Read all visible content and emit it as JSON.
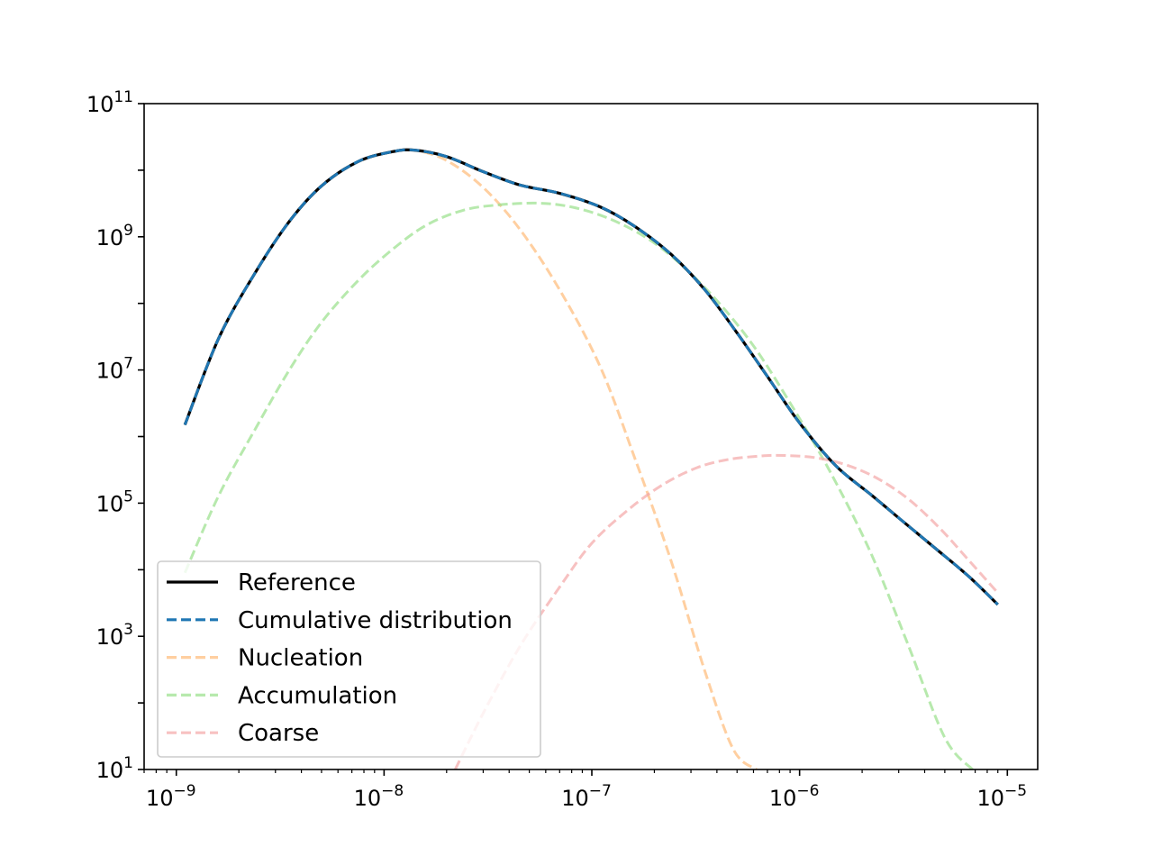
{
  "chart_data": {
    "type": "line",
    "title": "",
    "xlabel": "",
    "ylabel": "",
    "x_scale": "log",
    "y_scale": "log",
    "xlim": [
      7e-10,
      1.4e-05
    ],
    "ylim": [
      10,
      100000000000.0
    ],
    "x_ticks": [
      {
        "base": "10",
        "exp": "−9",
        "value": 1e-09
      },
      {
        "base": "10",
        "exp": "−8",
        "value": 1e-08
      },
      {
        "base": "10",
        "exp": "−7",
        "value": 1e-07
      },
      {
        "base": "10",
        "exp": "−6",
        "value": 1e-06
      },
      {
        "base": "10",
        "exp": "−5",
        "value": 1e-05
      }
    ],
    "y_ticks": [
      {
        "base": "10",
        "exp": "1",
        "value": 10.0
      },
      {
        "base": "10",
        "exp": "3",
        "value": 1000.0
      },
      {
        "base": "10",
        "exp": "5",
        "value": 100000.0
      },
      {
        "base": "10",
        "exp": "7",
        "value": 10000000.0
      },
      {
        "base": "10",
        "exp": "9",
        "value": 1000000000.0
      },
      {
        "base": "10",
        "exp": "11",
        "value": 100000000000.0
      }
    ],
    "grid": false,
    "legend_position": "lower-left",
    "x": [
      1.1e-09,
      1.6e-09,
      2.4e-09,
      3.5e-09,
      5e-09,
      7.5e-09,
      1.1e-08,
      1.4e-08,
      2e-08,
      3e-08,
      4.5e-08,
      7e-08,
      1.1e-07,
      1.6e-07,
      2.4e-07,
      3.5e-07,
      5e-07,
      7e-07,
      1e-06,
      1.5e-06,
      2.2e-06,
      3e-06,
      4.5e-06,
      6.5e-06,
      9e-06
    ],
    "series": [
      {
        "name": "Reference",
        "color": "#000000",
        "dash": "solid",
        "opacity": 1.0,
        "values": [
          1500000.0,
          30000000.0,
          290000000.0,
          1700000000.0,
          5800000000.0,
          13500000000.0,
          19000000000.0,
          20000000000.0,
          16000000000.0,
          9500000000.0,
          6000000000.0,
          4500000000.0,
          2800000000.0,
          1450000000.0,
          550000000.0,
          160000000.0,
          36000000.0,
          8000000.0,
          1600000.0,
          360000.0,
          135000.0,
          60000.0,
          21000.0,
          8000.0,
          3000.0
        ]
      },
      {
        "name": "Cumulative distribution",
        "color": "#1f77b4",
        "dash": "dashed",
        "opacity": 1.0,
        "values": [
          1500000.0,
          30000000.0,
          290000000.0,
          1700000000.0,
          5800000000.0,
          13500000000.0,
          19000000000.0,
          20000000000.0,
          16000000000.0,
          9500000000.0,
          6000000000.0,
          4500000000.0,
          2800000000.0,
          1450000000.0,
          550000000.0,
          160000000.0,
          36000000.0,
          8000000.0,
          1600000.0,
          360000.0,
          135000.0,
          60000.0,
          21000.0,
          8000.0,
          3000.0
        ]
      },
      {
        "name": "Nucleation",
        "color": "#ffbb78",
        "dash": "dashed",
        "opacity": 0.7,
        "x": [
          1.1e-09,
          1.6e-09,
          2.4e-09,
          3.5e-09,
          5e-09,
          7.5e-09,
          1.1e-08,
          1.4e-08,
          2e-08,
          3e-08,
          4.5e-08,
          7e-08,
          1.1e-07,
          1.6e-07,
          2.4e-07,
          3.5e-07,
          4.8e-07,
          6.2e-07
        ],
        "values": [
          1500000.0,
          30000000.0,
          290000000.0,
          1700000000.0,
          5800000000.0,
          13500000000.0,
          19000000000.0,
          20000000000.0,
          14000000000.0,
          5500000000.0,
          1300000000.0,
          160000000.0,
          11000000.0,
          500000.0,
          14000.0,
          300.0,
          20.0,
          10.0
        ]
      },
      {
        "name": "Accumulation",
        "color": "#98df8a",
        "dash": "dashed",
        "opacity": 0.7,
        "x": [
          1.1e-09,
          1.6e-09,
          2.4e-09,
          3.5e-09,
          5e-09,
          7.5e-09,
          1.1e-08,
          1.6e-08,
          2.4e-08,
          3.5e-08,
          5.5e-08,
          8e-08,
          1.2e-07,
          1.8e-07,
          2.6e-07,
          4e-07,
          6e-07,
          9e-07,
          1.4e-06,
          2.2e-06,
          3.3e-06,
          5e-06,
          6.8e-06
        ],
        "values": [
          9000.0,
          130000.0,
          1300000.0,
          10000000.0,
          52000000.0,
          220000000.0,
          650000000.0,
          1500000000.0,
          2500000000.0,
          3000000000.0,
          3200000000.0,
          2800000000.0,
          1900000000.0,
          1000000000.0,
          420000000.0,
          110000000.0,
          23000000.0,
          3200000.0,
          300000.0,
          18000.0,
          800.0,
          30.0,
          10.0
        ]
      },
      {
        "name": "Coarse",
        "color": "#f4a6a6",
        "dash": "dashed",
        "opacity": 0.7,
        "x": [
          2.2e-08,
          3e-08,
          4.5e-08,
          7e-08,
          1e-07,
          1.5e-07,
          2.2e-07,
          3.2e-07,
          4.5e-07,
          6.5e-07,
          8.5e-07,
          1.2e-06,
          1.7e-06,
          2.4e-06,
          3.4e-06,
          4.8e-06,
          6.5e-06,
          9e-06
        ],
        "values": [
          10.0,
          70.0,
          700.0,
          5500.0,
          25000.0,
          80000.0,
          190000.0,
          340000.0,
          450000.0,
          510000.0,
          520000.0,
          480000.0,
          370000.0,
          230000.0,
          110000.0,
          40000.0,
          14000.0,
          4500.0
        ]
      }
    ],
    "legend": [
      {
        "label": "Reference"
      },
      {
        "label": "Cumulative distribution"
      },
      {
        "label": "Nucleation"
      },
      {
        "label": "Accumulation"
      },
      {
        "label": "Coarse"
      }
    ]
  }
}
